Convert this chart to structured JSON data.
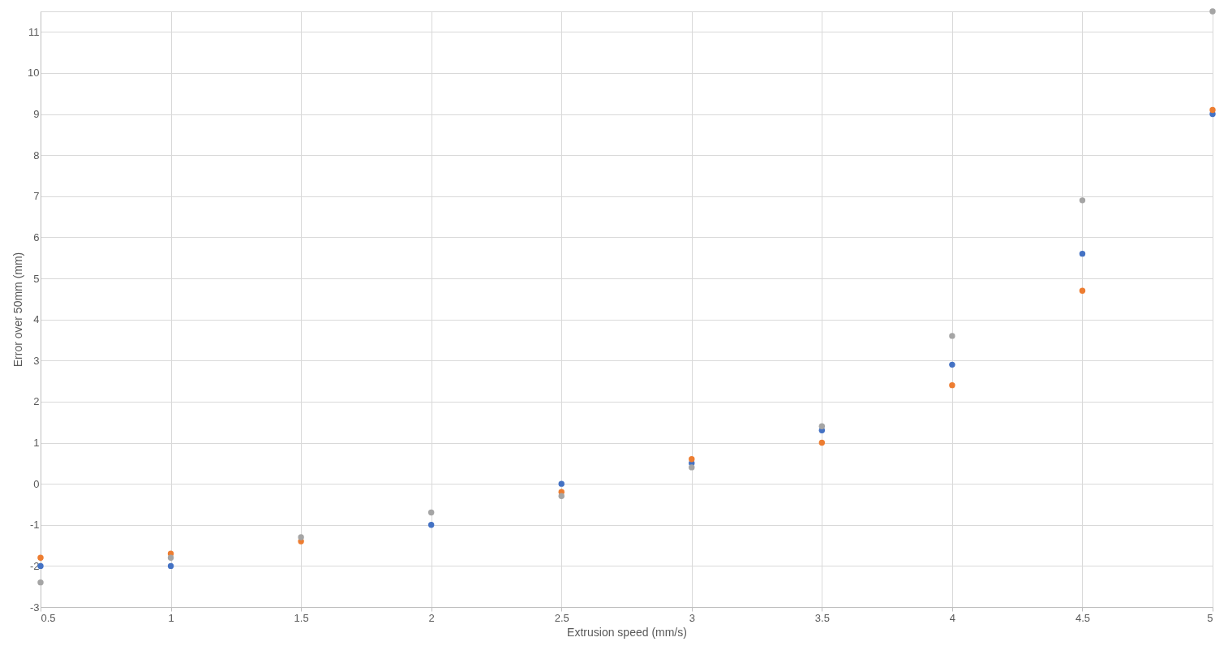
{
  "chart_data": {
    "type": "scatter",
    "xlabel": "Extrusion speed (mm/s)",
    "ylabel": "Error over 50mm (mm)",
    "x": [
      0.5,
      1,
      1.5,
      2,
      2.5,
      3,
      3.5,
      4,
      4.5,
      5
    ],
    "series": [
      {
        "color": "#4472c4",
        "values": [
          -2,
          -2,
          null,
          -1,
          0,
          0.5,
          1.3,
          2.9,
          5.6,
          9.0
        ]
      },
      {
        "color": "#ed7d31",
        "values": [
          -1.8,
          -1.7,
          -1.4,
          null,
          -0.2,
          0.6,
          1.0,
          2.4,
          4.7,
          9.1
        ]
      },
      {
        "color": "#a5a5a5",
        "values": [
          -2.4,
          -1.8,
          -1.3,
          -0.7,
          -0.3,
          0.4,
          1.4,
          3.6,
          6.9,
          11.5
        ]
      }
    ],
    "xlim": [
      0.5,
      5
    ],
    "xticks": [
      0.5,
      1,
      1.5,
      2,
      2.5,
      3,
      3.5,
      4,
      4.5,
      5
    ],
    "ylim": [
      -3,
      11.5
    ],
    "yticks": [
      -3,
      -2,
      -1,
      0,
      1,
      2,
      3,
      4,
      5,
      6,
      7,
      8,
      9,
      10,
      11
    ],
    "grid": true,
    "marker": "circle",
    "legend": false
  }
}
